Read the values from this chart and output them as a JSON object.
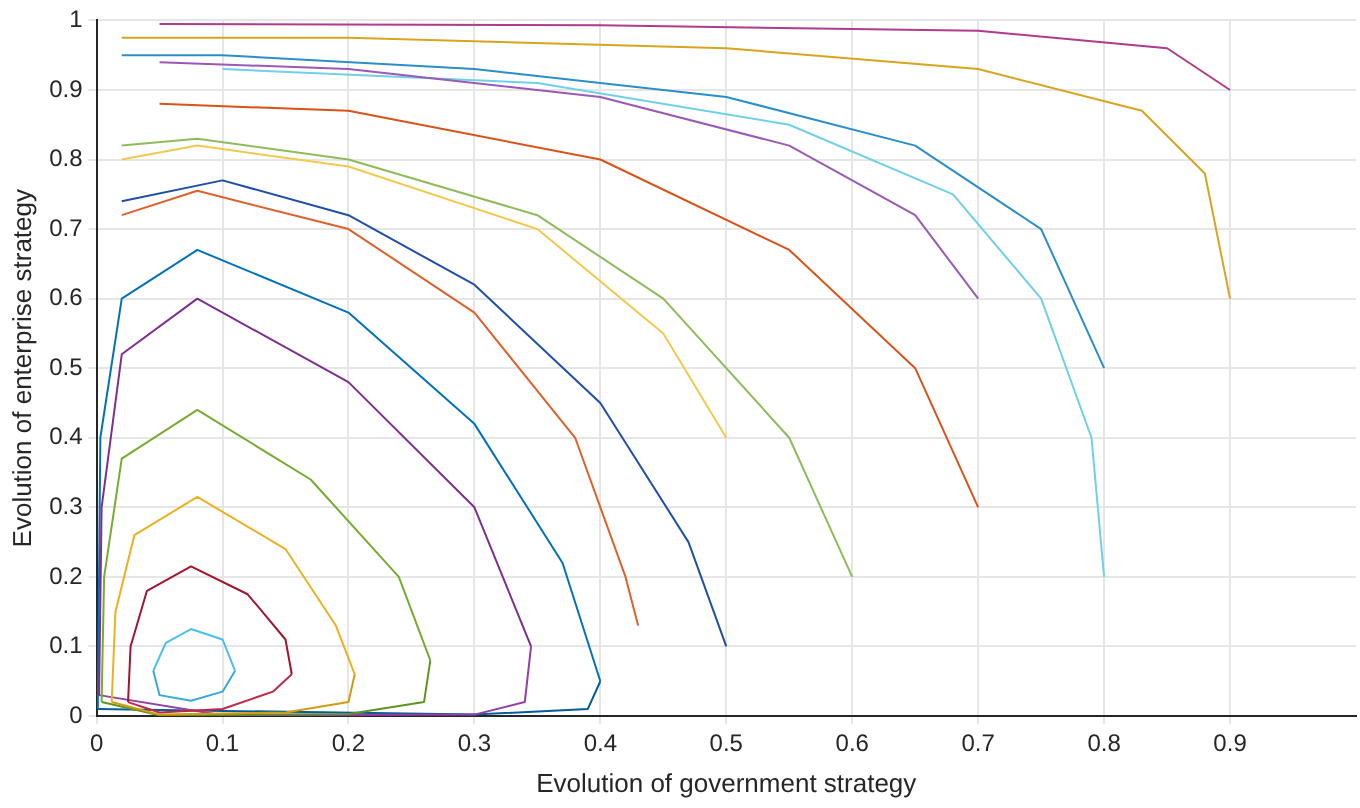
{
  "chart_data": {
    "type": "line",
    "xlabel": "Evolution of government strategy",
    "ylabel": "Evolution of enterprise strategy",
    "xlim": [
      0,
      1
    ],
    "ylim": [
      0,
      1
    ],
    "xticks": [
      0,
      0.1,
      0.2,
      0.3,
      0.4,
      0.5,
      0.6,
      0.7,
      0.8,
      0.9
    ],
    "yticks": [
      0,
      0.1,
      0.2,
      0.3,
      0.4,
      0.5,
      0.6,
      0.7,
      0.8,
      0.9,
      1
    ],
    "grid": true,
    "legend": false,
    "marker": "none",
    "line_style": "solid",
    "series": [
      {
        "color": "#4dbeee",
        "x": [
          0.045,
          0.055,
          0.075,
          0.1,
          0.11
        ],
        "values": [
          0.065,
          0.105,
          0.125,
          0.11,
          0.065
        ]
      },
      {
        "color": "#3aa8d8",
        "x": [
          0.11,
          0.1,
          0.075,
          0.05,
          0.045
        ],
        "values": [
          0.065,
          0.035,
          0.022,
          0.03,
          0.065
        ]
      },
      {
        "color": "#a2142f",
        "x": [
          0.025,
          0.027,
          0.04,
          0.075,
          0.12,
          0.15,
          0.155
        ],
        "values": [
          0.02,
          0.1,
          0.18,
          0.215,
          0.175,
          0.11,
          0.06
        ]
      },
      {
        "color": "#c02848",
        "x": [
          0.155,
          0.14,
          0.1,
          0.05,
          0.025
        ],
        "values": [
          0.06,
          0.035,
          0.01,
          0.005,
          0.02
        ]
      },
      {
        "color": "#edb120",
        "x": [
          0.012,
          0.015,
          0.03,
          0.08,
          0.15,
          0.19,
          0.205
        ],
        "values": [
          0.02,
          0.15,
          0.26,
          0.315,
          0.24,
          0.13,
          0.06
        ]
      },
      {
        "color": "#d49a10",
        "x": [
          0.205,
          0.2,
          0.15,
          0.05,
          0.012
        ],
        "values": [
          0.06,
          0.02,
          0.005,
          0.002,
          0.02
        ]
      },
      {
        "color": "#77ac30",
        "x": [
          0.004,
          0.006,
          0.02,
          0.08,
          0.17,
          0.24,
          0.265
        ],
        "values": [
          0.02,
          0.2,
          0.37,
          0.44,
          0.34,
          0.2,
          0.08
        ]
      },
      {
        "color": "#5f9420",
        "x": [
          0.265,
          0.26,
          0.2,
          0.05,
          0.004
        ],
        "values": [
          0.08,
          0.02,
          0.003,
          0.001,
          0.02
        ]
      },
      {
        "color": "#7e2f8e",
        "x": [
          0.002,
          0.004,
          0.02,
          0.08,
          0.2,
          0.3,
          0.345
        ],
        "values": [
          0.03,
          0.3,
          0.52,
          0.6,
          0.48,
          0.3,
          0.1
        ]
      },
      {
        "color": "#9440a6",
        "x": [
          0.345,
          0.34,
          0.3,
          0.1,
          0.002
        ],
        "values": [
          0.1,
          0.02,
          0.002,
          0.001,
          0.03
        ]
      },
      {
        "color": "#0072bd",
        "x": [
          0.001,
          0.003,
          0.02,
          0.08,
          0.2,
          0.3,
          0.37,
          0.4
        ],
        "values": [
          0.01,
          0.4,
          0.6,
          0.67,
          0.58,
          0.42,
          0.22,
          0.05
        ]
      },
      {
        "color": "#005c9a",
        "x": [
          0.4,
          0.39,
          0.3,
          0.001
        ],
        "values": [
          0.05,
          0.01,
          0.002,
          0.01
        ]
      },
      {
        "color": "#e0602a",
        "x": [
          0.43,
          0.42,
          0.38,
          0.3,
          0.2,
          0.08,
          0.02
        ],
        "values": [
          0.13,
          0.2,
          0.4,
          0.58,
          0.7,
          0.755,
          0.72
        ]
      },
      {
        "color": "#1f4fa8",
        "x": [
          0.5,
          0.47,
          0.4,
          0.3,
          0.2,
          0.1,
          0.02
        ],
        "values": [
          0.1,
          0.25,
          0.45,
          0.62,
          0.72,
          0.77,
          0.74
        ]
      },
      {
        "color": "#f2c94c",
        "x": [
          0.5,
          0.45,
          0.35,
          0.2,
          0.08,
          0.02
        ],
        "values": [
          0.4,
          0.55,
          0.7,
          0.79,
          0.82,
          0.8
        ]
      },
      {
        "color": "#8fbc5a",
        "x": [
          0.6,
          0.55,
          0.45,
          0.35,
          0.2,
          0.08,
          0.02
        ],
        "values": [
          0.2,
          0.4,
          0.6,
          0.72,
          0.8,
          0.83,
          0.82
        ]
      },
      {
        "color": "#d95319",
        "x": [
          0.7,
          0.65,
          0.55,
          0.4,
          0.2,
          0.05
        ],
        "values": [
          0.3,
          0.5,
          0.67,
          0.8,
          0.87,
          0.88
        ]
      },
      {
        "color": "#9b59b6",
        "x": [
          0.7,
          0.65,
          0.55,
          0.4,
          0.2,
          0.05
        ],
        "values": [
          0.6,
          0.72,
          0.82,
          0.89,
          0.93,
          0.94
        ]
      },
      {
        "color": "#6fd0e8",
        "x": [
          0.8,
          0.79,
          0.75,
          0.68,
          0.55,
          0.35,
          0.1
        ],
        "values": [
          0.2,
          0.4,
          0.6,
          0.75,
          0.85,
          0.91,
          0.93
        ]
      },
      {
        "color": "#2a8fc9",
        "x": [
          0.8,
          0.75,
          0.65,
          0.5,
          0.3,
          0.1,
          0.02
        ],
        "values": [
          0.5,
          0.7,
          0.82,
          0.89,
          0.93,
          0.95,
          0.95
        ]
      },
      {
        "color": "#d9a520",
        "x": [
          0.9,
          0.88,
          0.83,
          0.7,
          0.5,
          0.2,
          0.02
        ],
        "values": [
          0.6,
          0.78,
          0.87,
          0.93,
          0.96,
          0.975,
          0.975
        ]
      },
      {
        "color": "#b03a8c",
        "x": [
          0.9,
          0.85,
          0.7,
          0.4,
          0.05
        ],
        "values": [
          0.9,
          0.96,
          0.985,
          0.993,
          0.995
        ]
      }
    ]
  }
}
